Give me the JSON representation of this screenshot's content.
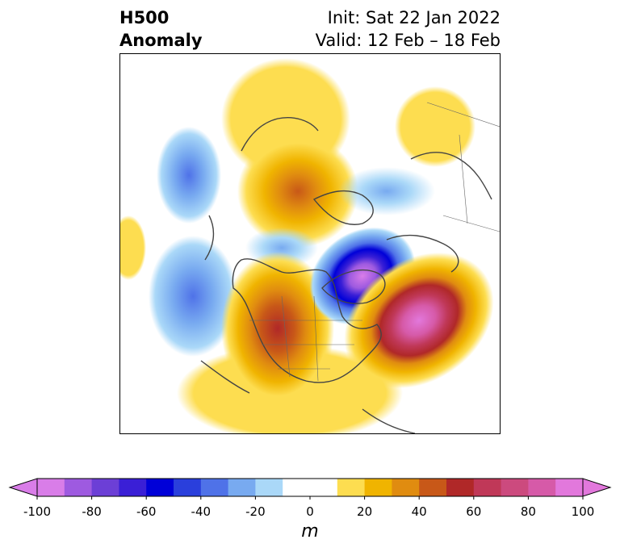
{
  "header": {
    "title_line1": "H500",
    "title_line2": "Anomaly",
    "init": "Init: Sat 22 Jan 2022",
    "valid": "Valid: 12 Feb – 18 Feb"
  },
  "colorbar": {
    "unit": "m",
    "ticks": [
      "-100",
      "-80",
      "-60",
      "-40",
      "-20",
      "0",
      "20",
      "40",
      "60",
      "80",
      "100"
    ],
    "min": -100,
    "max": 100,
    "step": 10,
    "extend": "both",
    "colors": [
      "#d97de8",
      "#9e5ae0",
      "#6c3fd6",
      "#3a1fd6",
      "#0000d8",
      "#2a3fdc",
      "#4f72e8",
      "#78aaf0",
      "#aad8f8",
      "#ffffff",
      "#ffffff",
      "#fddd50",
      "#f0b400",
      "#e08c10",
      "#c85818",
      "#b02828",
      "#c03858",
      "#cc4a7e",
      "#d65aa8",
      "#e278dc"
    ]
  },
  "map_anomalies": [
    {
      "region": "western North America",
      "sign": "positive",
      "peak_m": 50
    },
    {
      "region": "North Atlantic",
      "sign": "positive",
      "peak_m": 100
    },
    {
      "region": "Hudson Bay",
      "sign": "negative",
      "peak_m": -100
    },
    {
      "region": "North Pacific",
      "sign": "negative",
      "peak_m": -40
    },
    {
      "region": "Siberia / Arctic",
      "sign": "positive",
      "peak_m": 40
    }
  ]
}
